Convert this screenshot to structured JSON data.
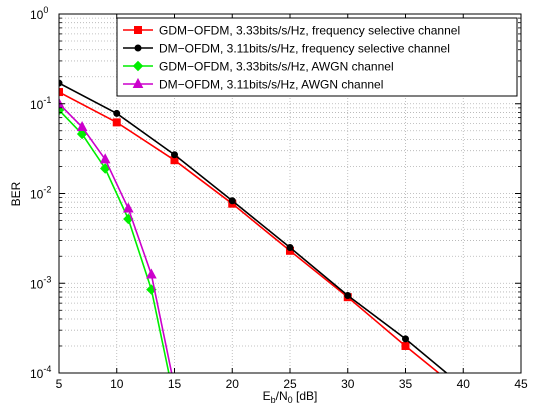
{
  "chart_data": {
    "type": "line",
    "title": "",
    "xlabel": {
      "base": "E",
      "sub1": "b",
      "mid": "/N",
      "sub2": "0",
      "tail": " [dB]"
    },
    "ylabel": "BER",
    "xlim": [
      5,
      45
    ],
    "ylim": [
      0.0001,
      1
    ],
    "yscale": "log",
    "grid": true,
    "legend_position": "top-right",
    "x_ticks": [
      "5",
      "10",
      "15",
      "20",
      "25",
      "30",
      "35",
      "40",
      "45"
    ],
    "y_ticks": [
      {
        "value": 1,
        "base": "10",
        "exp": "0"
      },
      {
        "value": 0.1,
        "base": "10",
        "exp": "-1"
      },
      {
        "value": 0.01,
        "base": "10",
        "exp": "-2"
      },
      {
        "value": 0.001,
        "base": "10",
        "exp": "-3"
      },
      {
        "value": 0.0001,
        "base": "10",
        "exp": "-4"
      }
    ],
    "series": [
      {
        "name": "GDM−OFDM, 3.33bits/s/Hz, frequency selective channel",
        "color": "#ff0000",
        "marker": "square",
        "x": [
          5,
          10,
          15,
          20,
          25,
          30,
          35,
          40
        ],
        "y": [
          0.135,
          0.062,
          0.0235,
          0.0077,
          0.0023,
          0.0007,
          0.0002,
          6e-05
        ]
      },
      {
        "name": "DM−OFDM, 3.11bits/s/Hz, frequency selective channel",
        "color": "#000000",
        "marker": "dot",
        "x": [
          5,
          10,
          15,
          20,
          25,
          30,
          35,
          40
        ],
        "y": [
          0.17,
          0.078,
          0.027,
          0.0083,
          0.0025,
          0.00073,
          0.00024,
          7e-05
        ]
      },
      {
        "name": "GDM−OFDM, 3.33bits/s/Hz, AWGN channel",
        "color": "#00ee00",
        "marker": "diamond",
        "x": [
          5,
          7,
          9,
          11,
          13,
          15
        ],
        "y": [
          0.085,
          0.046,
          0.019,
          0.0052,
          0.00085,
          5e-05
        ]
      },
      {
        "name": "DM−OFDM, 3.11bits/s/Hz, AWGN channel",
        "color": "#cc00cc",
        "marker": "triangle",
        "x": [
          5,
          7,
          9,
          11,
          13,
          15
        ],
        "y": [
          0.1,
          0.055,
          0.024,
          0.0068,
          0.00125,
          7e-05
        ]
      }
    ]
  }
}
